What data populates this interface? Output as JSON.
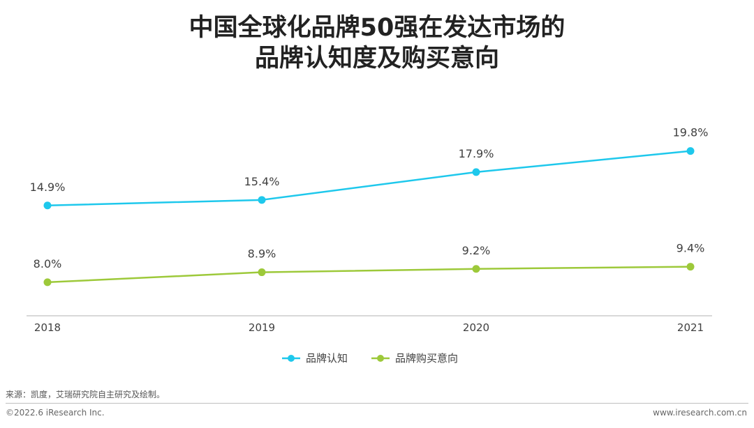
{
  "title_line1": "中国全球化品牌50强在发达市场的",
  "title_line2": "品牌认知度及购买意向",
  "chart_data": {
    "type": "line",
    "categories": [
      "2018",
      "2019",
      "2020",
      "2021"
    ],
    "series": [
      {
        "name": "品牌认知",
        "values": [
          14.9,
          15.4,
          17.9,
          19.8
        ],
        "labels": [
          "14.9%",
          "15.4%",
          "17.9%",
          "19.8%"
        ],
        "color": "#1ec8ec"
      },
      {
        "name": "品牌购买意向",
        "values": [
          8.0,
          8.9,
          9.2,
          9.4
        ],
        "labels": [
          "8.0%",
          "8.9%",
          "9.2%",
          "9.4%"
        ],
        "color": "#9dc93a"
      }
    ],
    "unit": "%",
    "legend_position": "bottom-center",
    "grid": false
  },
  "source": "来源：凯度，艾瑞研究院自主研究及绘制。",
  "copyright": "©2022.6 iResearch Inc.",
  "website": "www.iresearch.com.cn"
}
